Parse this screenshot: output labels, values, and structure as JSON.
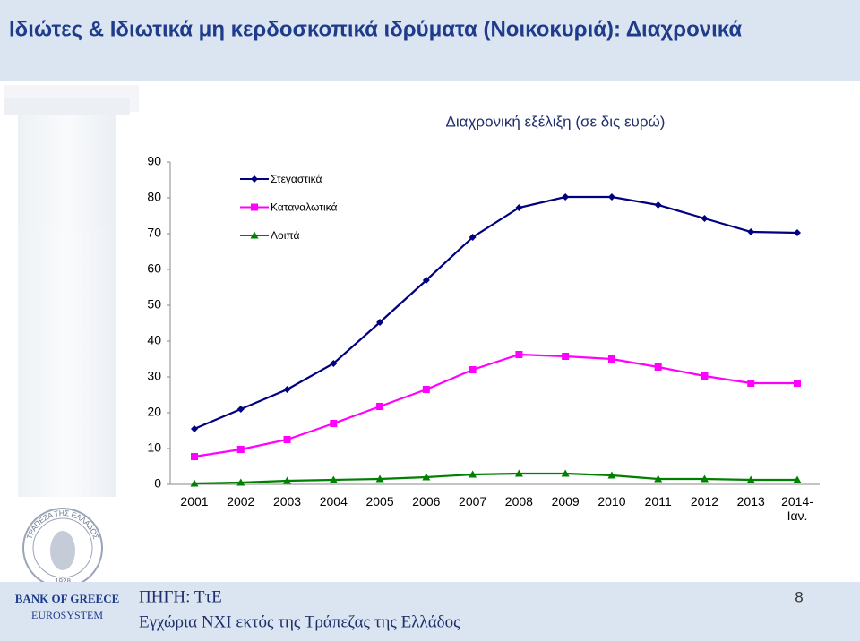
{
  "header": {
    "title": "Ιδιώτες & Ιδιωτικά μη κερδοσκοπικά ιδρύματα (Νοικοκυριά): Διαχρονικά"
  },
  "chart_data": {
    "type": "line",
    "title": "Διαχρονική εξέλιξη (σε δις ευρώ)",
    "categories": [
      "2001",
      "2002",
      "2003",
      "2004",
      "2005",
      "2006",
      "2007",
      "2008",
      "2009",
      "2010",
      "2011",
      "2012",
      "2013",
      "2014-Ιαν."
    ],
    "series": [
      {
        "name": "Στεγαστικά",
        "color": "#000080",
        "marker": "diamond",
        "values": [
          15.5,
          21,
          26.5,
          33.75,
          45.25,
          57,
          69,
          77.25,
          80.25,
          80.25,
          78,
          74.25,
          70.5,
          70.25
        ]
      },
      {
        "name": "Καταναλωτικά",
        "color": "#ff00ff",
        "marker": "square",
        "values": [
          7.75,
          9.75,
          12.5,
          17,
          21.75,
          26.5,
          32,
          36.25,
          35.75,
          35,
          32.75,
          30.25,
          28.25,
          28.25
        ]
      },
      {
        "name": "Λοιπά",
        "color": "#008000",
        "marker": "triangle",
        "values": [
          0.25,
          0.5,
          1,
          1.25,
          1.5,
          2,
          2.75,
          3,
          3,
          2.5,
          1.5,
          1.5,
          1.25,
          1.25
        ]
      }
    ],
    "ylim": [
      0,
      90
    ],
    "yticks": [
      0,
      10,
      20,
      30,
      40,
      50,
      60,
      70,
      80,
      90
    ],
    "grid": false,
    "legend": "upper-left"
  },
  "logo": {
    "text": "ΤΡΑΠΕΖΑ ΤΗΣ ΕΛΛΑΔΟΣ",
    "year": "1928"
  },
  "footer": {
    "bank": "BANK OF GREECE",
    "system": "EUROSYSTEM",
    "source": "ΠΗΓΗ: ΤτΕ",
    "note": "Εγχώρια ΝΧΙ εκτός της Τράπεζας της Ελλάδος",
    "page": "8"
  }
}
